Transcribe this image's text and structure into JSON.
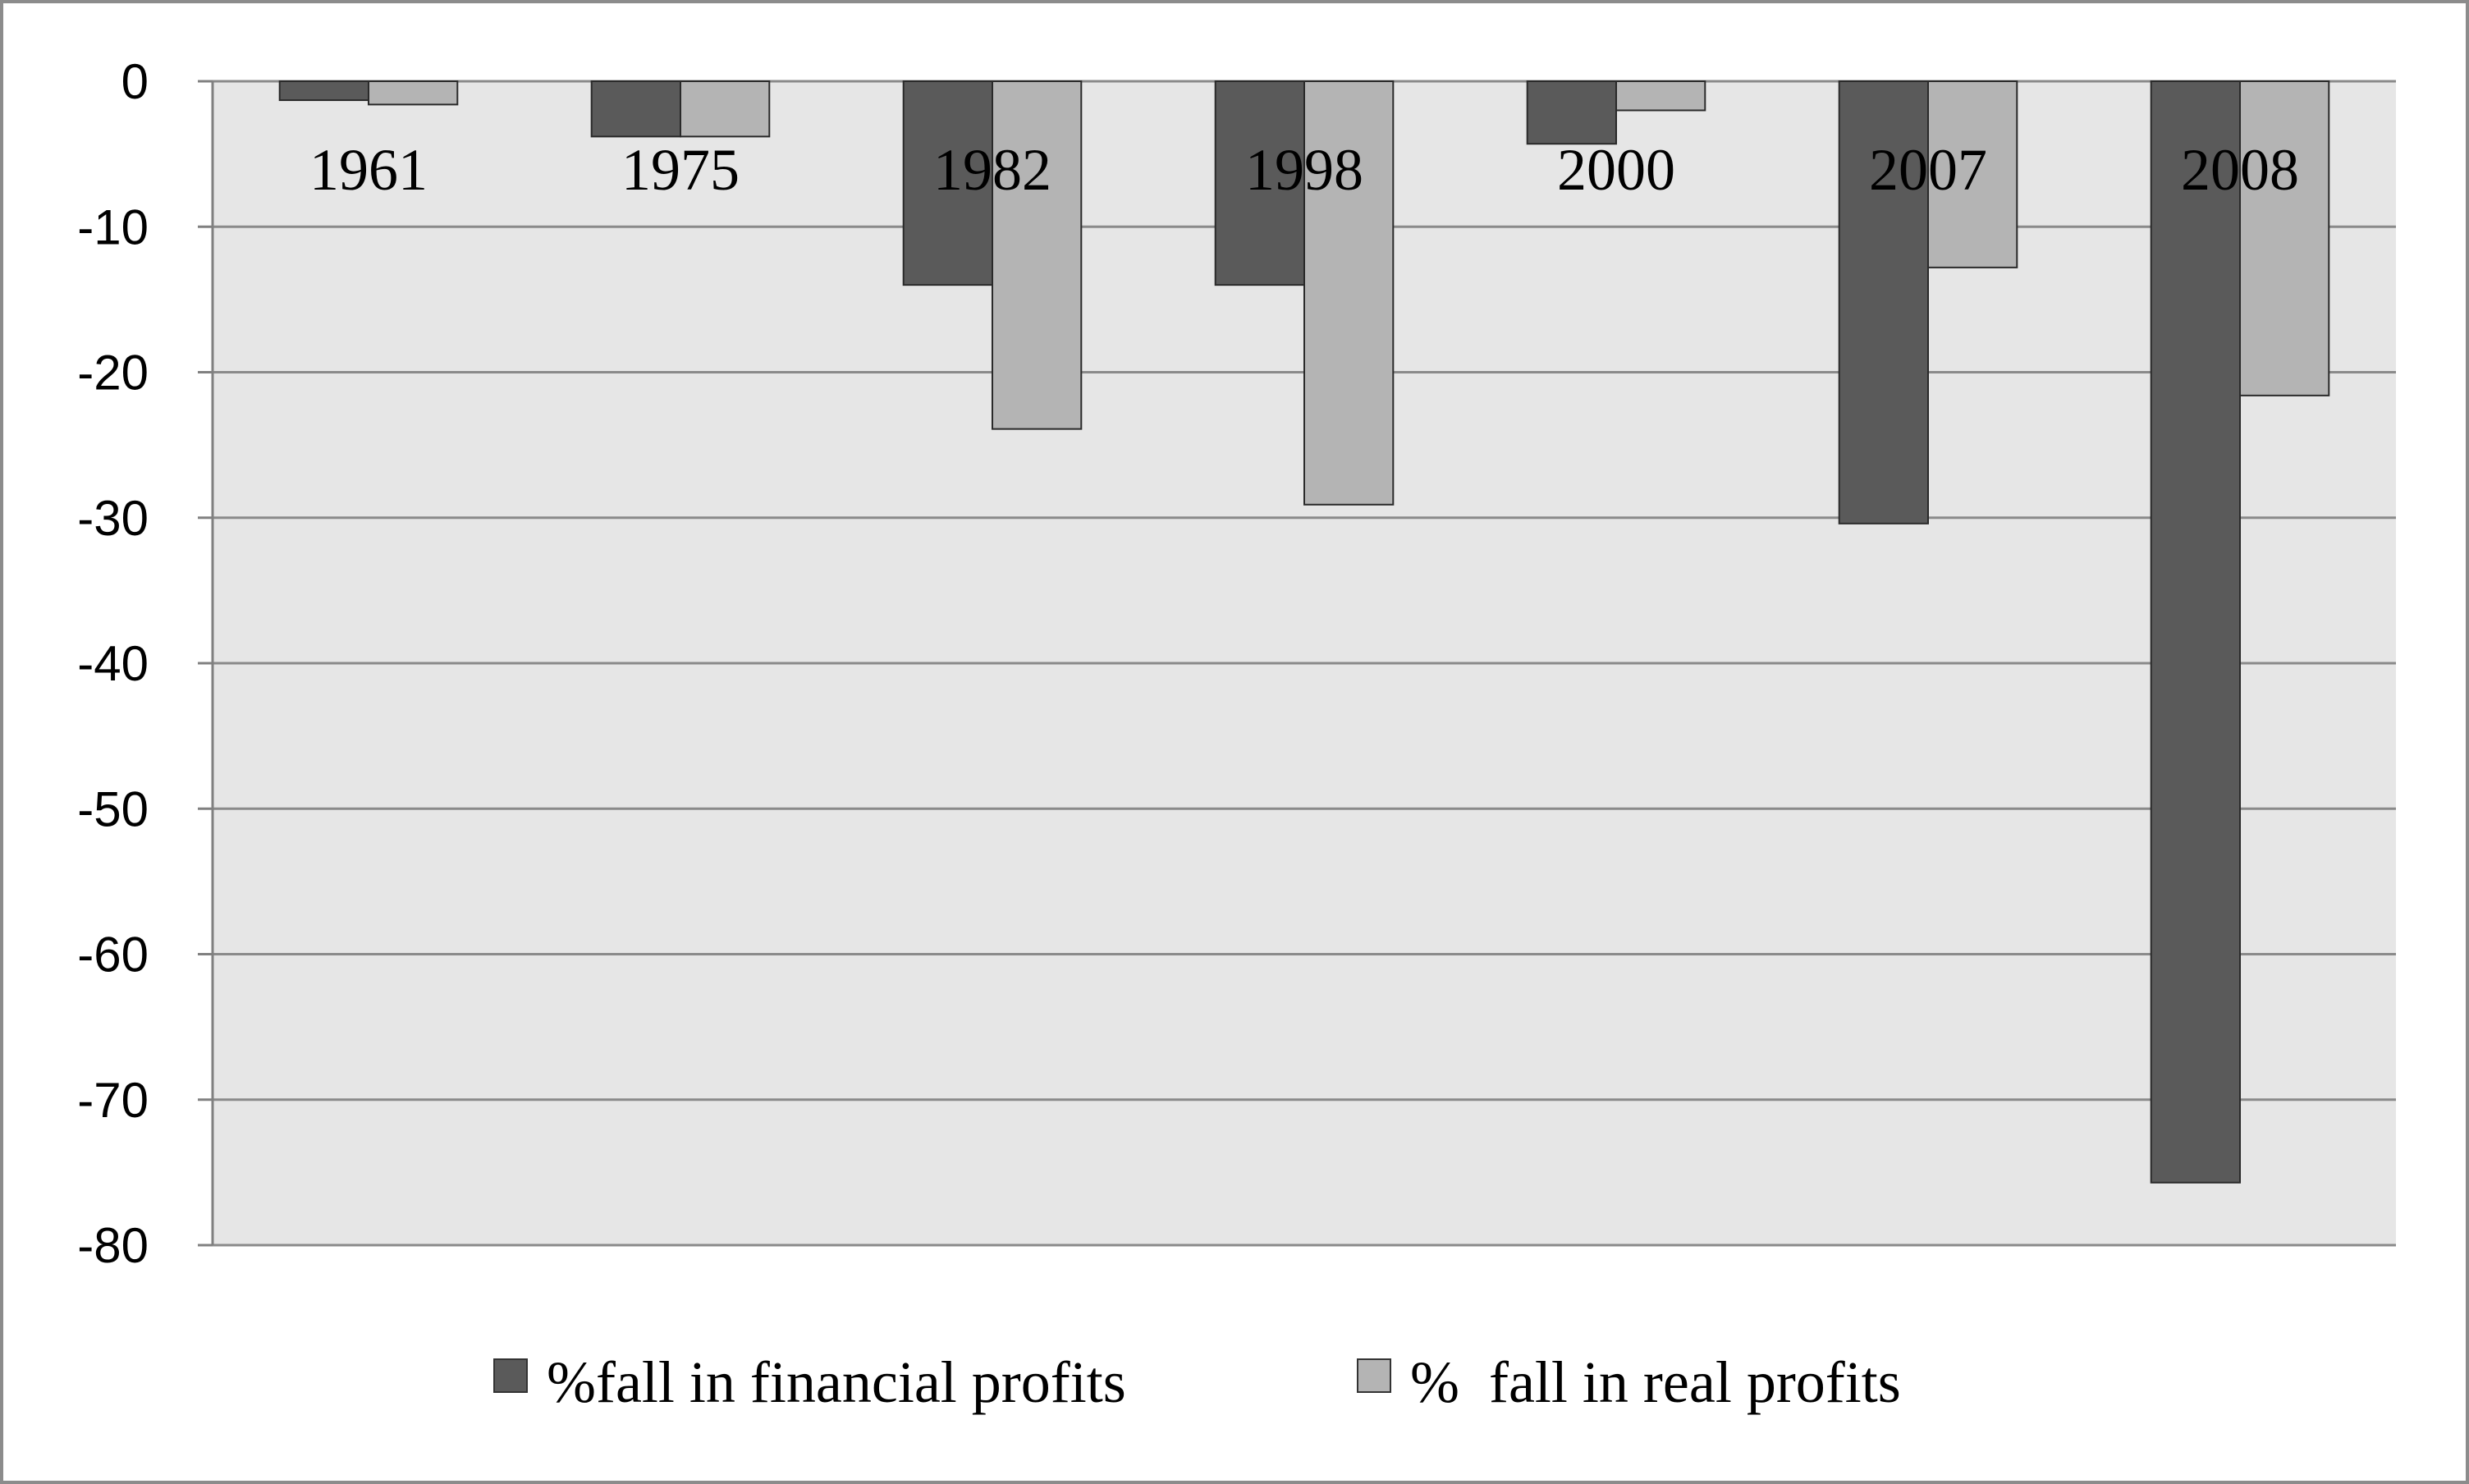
{
  "chart_data": {
    "type": "bar",
    "categories": [
      "1961",
      "1975",
      "1982",
      "1998",
      "2000",
      "2007",
      "2008"
    ],
    "series": [
      {
        "name": "%fall in financial profits",
        "color": "#5a5a5a",
        "values": [
          -1.3,
          -3.8,
          -14.0,
          -14.0,
          -4.3,
          -30.4,
          -75.7
        ]
      },
      {
        "name": "%  fall in real profits",
        "color": "#b4b4b4",
        "values": [
          -1.6,
          -3.8,
          -23.9,
          -29.1,
          -2.0,
          -12.8,
          -21.6
        ]
      }
    ],
    "ylim": [
      -80,
      0
    ],
    "yticks": [
      "0",
      "-10",
      "-20",
      "-30",
      "-40",
      "-50",
      "-60",
      "-70",
      "-80"
    ],
    "ytick_values": [
      0,
      -10,
      -20,
      -30,
      -40,
      -50,
      -60,
      -70,
      -80
    ],
    "grid": true,
    "legend_position": "bottom",
    "plot_background": "#e6e6e6",
    "title": "",
    "xlabel": "",
    "ylabel": ""
  }
}
